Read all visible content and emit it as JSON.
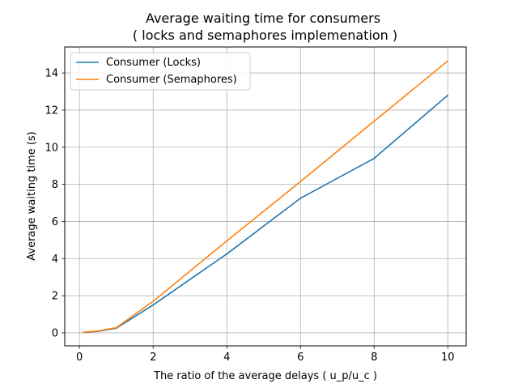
{
  "chart_data": {
    "type": "line",
    "title_line1": "Average waiting time for consumers",
    "title_line2": " ( locks and semaphores implemenation )",
    "xlabel": "The ratio of the average delays ( u_p/u_c )",
    "ylabel": "Average waiting time (s)",
    "xlim": [
      -0.4,
      10.5
    ],
    "ylim": [
      -0.7,
      15.4
    ],
    "xticks": [
      0,
      2,
      4,
      6,
      8,
      10
    ],
    "yticks": [
      0,
      2,
      4,
      6,
      8,
      10,
      12,
      14
    ],
    "grid": true,
    "legend_position": "top-left",
    "series": [
      {
        "name": "Consumer (Locks)",
        "color": "#1f77b4",
        "x": [
          0.1,
          0.5,
          1,
          2,
          4,
          6,
          8,
          10
        ],
        "y": [
          0.02,
          0.08,
          0.25,
          1.5,
          4.25,
          7.25,
          9.4,
          12.8
        ]
      },
      {
        "name": "Consumer (Semaphores)",
        "color": "#ff7f0e",
        "x": [
          0.1,
          0.5,
          1,
          2,
          4,
          6,
          8,
          10
        ],
        "y": [
          0.03,
          0.1,
          0.28,
          1.7,
          4.95,
          8.15,
          11.4,
          14.65
        ]
      }
    ]
  }
}
